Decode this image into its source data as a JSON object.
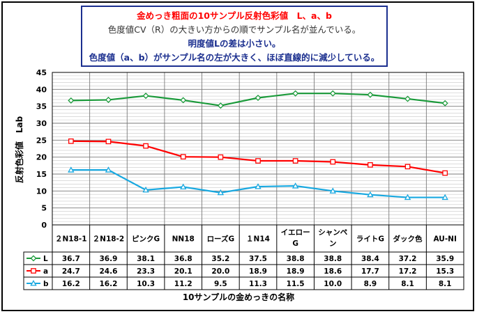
{
  "chart_data": {
    "type": "line",
    "title_lines": [
      "金めっき粗面の10サンプル反射色彩値　L、a、b",
      "色度値CV（R）の大きい方からの順でサンプル名が並んでいる。",
      "明度値Lの差は小さい。",
      "色度値（a、b）がサンプル名の左が大きく、ほぼ直線的に減少している。"
    ],
    "xlabel": "10サンプルの金めっきの名称",
    "ylabel": "反射色彩値　Lab",
    "ylim": [
      0,
      45
    ],
    "yticks": [
      0,
      5,
      10,
      15,
      20,
      25,
      30,
      35,
      40,
      45
    ],
    "grid": true,
    "categories": [
      "２N18-1",
      "２N18-2",
      "ピンクG",
      "NN18",
      "ローズG",
      "１N14",
      "イエローG",
      "シャンペン",
      "ライトG",
      "ダック色",
      "AU-NI"
    ],
    "series": [
      {
        "name": "L",
        "color": "#1a9a3a",
        "marker": "diamond",
        "values": [
          36.7,
          36.9,
          38.1,
          36.8,
          35.2,
          37.5,
          38.8,
          38.8,
          38.4,
          37.2,
          35.9
        ]
      },
      {
        "name": "a",
        "color": "#ff0000",
        "marker": "square",
        "values": [
          24.7,
          24.6,
          23.3,
          20.1,
          20.0,
          18.9,
          18.9,
          18.6,
          17.7,
          17.2,
          15.3
        ]
      },
      {
        "name": "b",
        "color": "#18a8e0",
        "marker": "triangle",
        "values": [
          16.2,
          16.2,
          10.3,
          11.2,
          9.5,
          11.3,
          11.5,
          10.0,
          8.9,
          8.1,
          8.1
        ]
      }
    ],
    "table_values": [
      [
        "36.7",
        "36.9",
        "38.1",
        "36.8",
        "35.2",
        "37.5",
        "38.8",
        "38.8",
        "38.4",
        "37.2",
        "35.9"
      ],
      [
        "24.7",
        "24.6",
        "23.3",
        "20.1",
        "20.0",
        "18.9",
        "18.9",
        "18.6",
        "17.7",
        "17.2",
        "15.3"
      ],
      [
        "16.2",
        "16.2",
        "10.3",
        "11.2",
        "9.5",
        "11.3",
        "11.5",
        "10.0",
        "8.9",
        "8.1",
        "8.1"
      ]
    ]
  }
}
